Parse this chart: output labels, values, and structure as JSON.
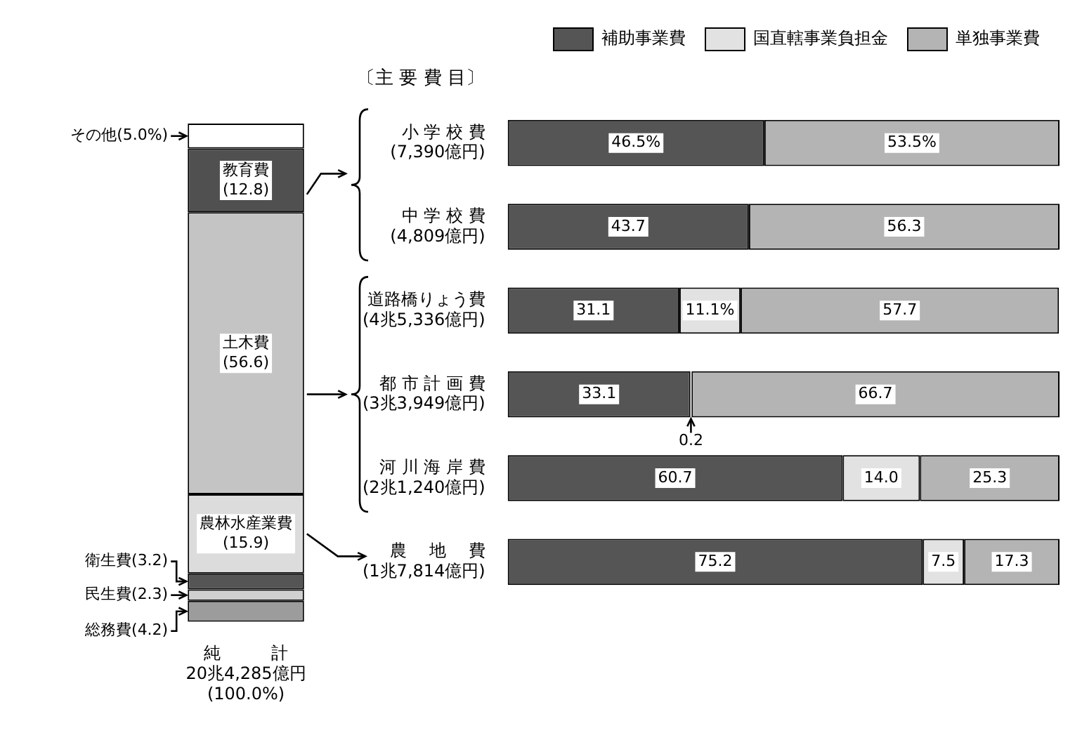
{
  "chart_data": [
    {
      "type": "bar",
      "stacked": true,
      "categories": [
        "純　　　計\n20兆4,285億円\n(100.0%)"
      ],
      "ylim": [
        0,
        100
      ],
      "tick_labels": "x",
      "legend": false,
      "series": [
        {
          "name": "総務費",
          "color": "#9c9c9c",
          "values": [
            4.2
          ],
          "value_labels": [
            "(4.2)"
          ]
        },
        {
          "name": "民生費",
          "color": "#d0d0d0",
          "values": [
            2.3
          ],
          "value_labels": [
            "(2.3)"
          ]
        },
        {
          "name": "衛生費",
          "color": "#555555",
          "values": [
            3.2
          ],
          "value_labels": [
            "(3.2)"
          ]
        },
        {
          "name": "農林水産業費",
          "color": "#dcdcdc",
          "values": [
            15.9
          ],
          "value_labels": [
            "(15.9)"
          ]
        },
        {
          "name": "土木費",
          "color": "#c4c4c4",
          "values": [
            56.6
          ],
          "value_labels": [
            "(56.6)"
          ]
        },
        {
          "name": "教育費",
          "color": "#505050",
          "values": [
            12.8
          ],
          "value_labels": [
            "(12.8)"
          ]
        },
        {
          "name": "その他",
          "color": "#ffffff",
          "values": [
            5.0
          ],
          "value_labels": [
            "(5.0%)"
          ]
        }
      ]
    },
    {
      "type": "bar",
      "stacked": true,
      "orientation": "horizontal",
      "xlim": [
        0,
        100
      ],
      "tick_labels": "y",
      "legend": "top right",
      "annotations": [
        "〔主 要 費 目〕"
      ],
      "categories": [
        "小 学 校 費\n(7,390億円)",
        "中 学 校 費\n(4,809億円)",
        "道路橋りょう費\n(4兆5,336億円)",
        "都 市 計 画 費\n(3兆3,949億円)",
        "河 川 海 岸 費\n(2兆1,240億円)",
        "農　 地 　費\n(1兆7,814億円)"
      ],
      "series": [
        {
          "name": "補助事業費",
          "color": "#555555",
          "values": [
            46.5,
            43.7,
            31.1,
            33.1,
            60.7,
            75.2
          ],
          "value_labels": [
            "46.5%",
            "43.7",
            "31.1",
            "33.1",
            "60.7",
            "75.2"
          ]
        },
        {
          "name": "国直轄事業負担金",
          "color": "#e2e2e2",
          "values": [
            null,
            null,
            11.1,
            0.2,
            14.0,
            7.5
          ],
          "value_labels": [
            null,
            null,
            "11.1%",
            "0.2",
            "14.0",
            "7.5"
          ]
        },
        {
          "name": "単独事業費",
          "color": "#b4b4b4",
          "values": [
            53.5,
            56.3,
            57.7,
            66.7,
            25.3,
            17.3
          ],
          "value_labels": [
            "53.5%",
            "56.3",
            "57.7",
            "66.7",
            "25.3",
            "17.3"
          ]
        }
      ]
    }
  ]
}
